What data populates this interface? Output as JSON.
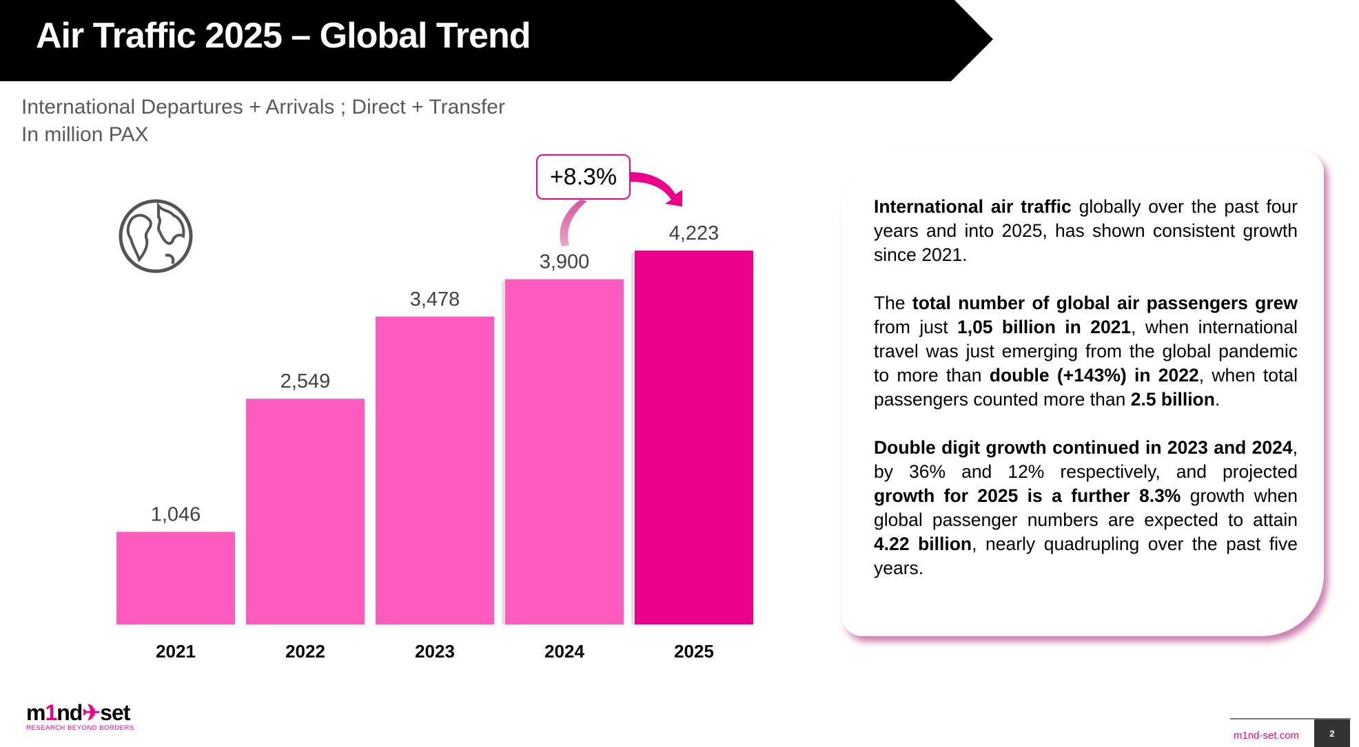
{
  "header": {
    "title": "Air Traffic 2025 – Global Trend"
  },
  "subtitle": {
    "line1": "International Departures + Arrivals ; Direct + Transfer",
    "line2": "In million PAX"
  },
  "chart_data": {
    "type": "bar",
    "title": "Air Traffic 2025 – Global Trend",
    "ylabel": "In million PAX",
    "categories": [
      "2021",
      "2022",
      "2023",
      "2024",
      "2025"
    ],
    "values": [
      1046,
      2549,
      3478,
      3900,
      4223
    ],
    "value_labels": [
      "1,046",
      "2,549",
      "3,478",
      "3,900",
      "4,223"
    ],
    "ylim": [
      0,
      4223
    ],
    "grid": false,
    "colors": [
      "#ff5bbf",
      "#ff5bbf",
      "#ff5bbf",
      "#ff5bbf",
      "#ec008c"
    ],
    "annotation": "+8.3%"
  },
  "panel": {
    "p1": [
      {
        "t": "International air traffic",
        "b": true
      },
      {
        "t": " globally over the past four years and into 2025, has shown consistent growth since 2021."
      }
    ],
    "p2": [
      {
        "t": "The "
      },
      {
        "t": "total number of global air passengers grew",
        "b": true
      },
      {
        "t": " from just "
      },
      {
        "t": "1,05 billion in 2021",
        "b": true
      },
      {
        "t": ", when international travel was just emerging from the global pandemic to more than "
      },
      {
        "t": "double (+143%) in 2022",
        "b": true
      },
      {
        "t": ", when total passengers counted more than "
      },
      {
        "t": "2.5 billion",
        "b": true
      },
      {
        "t": "."
      }
    ],
    "p3": [
      {
        "t": "Double digit growth continued in 2023 and 2024",
        "b": true
      },
      {
        "t": ", by 36% and 12% respectively, and projected "
      },
      {
        "t": "growth for 2025 is a further 8.3%",
        "b": true
      },
      {
        "t": " growth when global passenger numbers are expected to attain "
      },
      {
        "t": "4.22 billion",
        "b": true
      },
      {
        "t": ", nearly quadrupling over the past five years."
      }
    ]
  },
  "footer": {
    "logo_a": "m",
    "logo_b": "1",
    "logo_c": "nd",
    "logo_d": "set",
    "tagline": "RESEARCH BEYOND BORDERS",
    "site": "m1nd-set.com",
    "page": "2"
  }
}
